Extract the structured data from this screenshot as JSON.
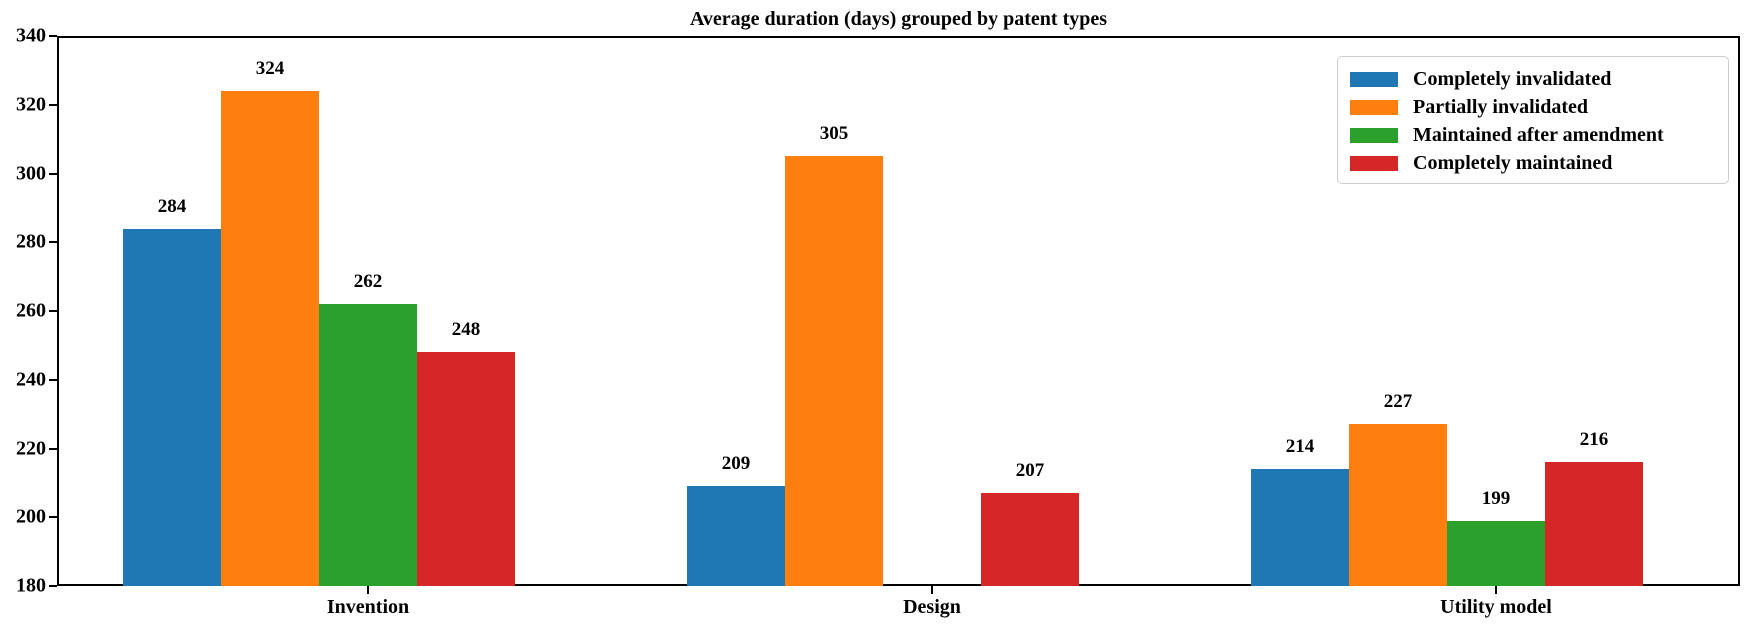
{
  "chart_data": {
    "type": "bar",
    "title": "Average duration (days) grouped by patent types",
    "categories": [
      "Invention",
      "Design",
      "Utility model"
    ],
    "series": [
      {
        "name": "Completely invalidated",
        "color": "#1f77b4",
        "values": [
          284,
          209,
          214
        ]
      },
      {
        "name": "Partially invalidated",
        "color": "#ff7f0e",
        "values": [
          324,
          305,
          227
        ]
      },
      {
        "name": "Maintained after amendment",
        "color": "#2ca02c",
        "values": [
          262,
          null,
          199
        ]
      },
      {
        "name": "Completely maintained",
        "color": "#d62728",
        "values": [
          248,
          207,
          216
        ]
      }
    ],
    "ylabel": "",
    "xlabel": "",
    "ylim": [
      180,
      340
    ],
    "yticks": [
      180,
      200,
      220,
      240,
      260,
      280,
      300,
      320,
      340
    ],
    "bar_value_labels": true,
    "grid": false,
    "legend_position": "upper-right",
    "axis_color": "#000000",
    "background_color": "#ffffff"
  }
}
